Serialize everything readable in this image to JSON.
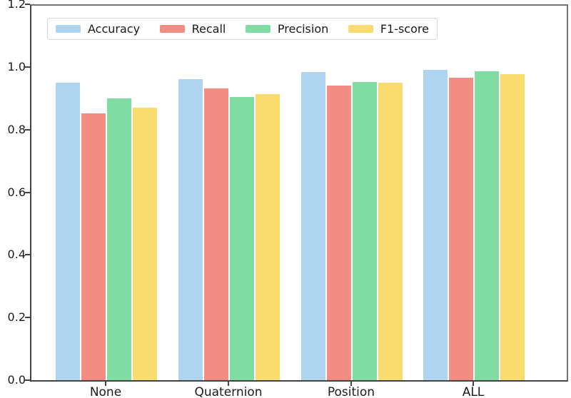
{
  "chart_data": {
    "type": "bar",
    "title": "",
    "xlabel": "",
    "ylabel": "",
    "categories": [
      "None",
      "Quaternion",
      "Position",
      "ALL"
    ],
    "series": [
      {
        "name": "Accuracy",
        "color": "#aed4f0",
        "values": [
          0.95,
          0.96,
          0.983,
          0.99
        ]
      },
      {
        "name": "Recall",
        "color": "#f18d82",
        "values": [
          0.852,
          0.932,
          0.94,
          0.965
        ]
      },
      {
        "name": "Precision",
        "color": "#80dca3",
        "values": [
          0.9,
          0.905,
          0.952,
          0.985
        ]
      },
      {
        "name": "F1-score",
        "color": "#f9dc70",
        "values": [
          0.87,
          0.914,
          0.95,
          0.977
        ]
      }
    ],
    "ylim": [
      0.0,
      1.2
    ],
    "yticks": [
      0.0,
      0.2,
      0.4,
      0.6,
      0.8,
      1.0,
      1.2
    ],
    "grid": false,
    "legend": {
      "position": "top-left",
      "orientation": "horizontal"
    }
  }
}
